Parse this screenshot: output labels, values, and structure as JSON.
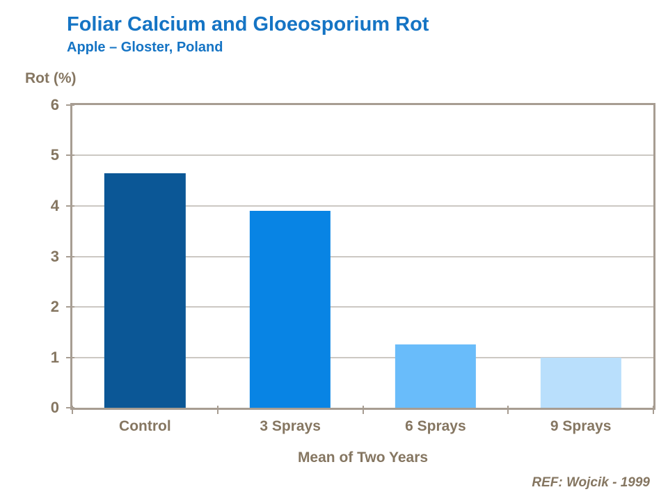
{
  "chart_data": {
    "type": "bar",
    "title": "Foliar Calcium and Gloeosporium Rot",
    "subtitle": "Apple – Gloster, Poland",
    "categories": [
      "Control",
      "3 Sprays",
      "6 Sprays",
      "9 Sprays"
    ],
    "values": [
      4.65,
      3.9,
      1.25,
      1.0
    ],
    "bar_colors": [
      "#0B5796",
      "#0884E4",
      "#69BCFA",
      "#B9DFFC"
    ],
    "ylabel": "Rot (%)",
    "xlabel": "Mean of Two Years",
    "ylim": [
      0,
      6
    ],
    "yticks": [
      0,
      1,
      2,
      3,
      4,
      5,
      6
    ],
    "grid": true,
    "legend": "none",
    "bar_width_fraction": 0.557
  },
  "footer": {
    "ref": "REF: Wojcik - 1999"
  },
  "colors": {
    "title_blue": "#1574C4",
    "text_brown": "#857661",
    "axis_frame": "#A79D92",
    "gridline": "#CCC8C3",
    "background": "#FFFFFF"
  }
}
